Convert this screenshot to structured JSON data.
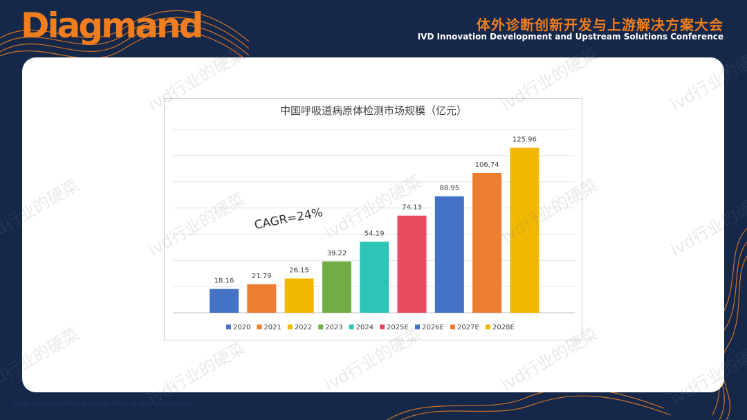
{
  "header": {
    "logo": "Diagmand",
    "conference_cn": "体外诊断创新开发与上游解决方案大会",
    "conference_en": "IVD Innovation Development and Upstream Solutions Conference"
  },
  "footer": {
    "tagline": "High quality information for High quality population"
  },
  "watermark": "ivd行业的硬菜",
  "colors": {
    "background": "#15284a",
    "brand_orange": "#f07d1e"
  },
  "chart_data": {
    "type": "bar",
    "title": "中国呼吸道病原体检测市场规模（亿元）",
    "annotation": "CAGR=24%",
    "categories": [
      "2020",
      "2021",
      "2022",
      "2023",
      "2024",
      "2025E",
      "2026E",
      "2027E",
      "2028E"
    ],
    "values": [
      18.16,
      21.79,
      26.15,
      39.22,
      54.19,
      74.13,
      88.95,
      106.74,
      125.96
    ],
    "data_labels": [
      "18.16",
      "21.79",
      "26.15",
      "39.22",
      "54.19",
      "74.13",
      "88.95",
      "106.74",
      "125.96"
    ],
    "colors": [
      "#4472c4",
      "#ed7d31",
      "#f0b800",
      "#70ad47",
      "#2ec4b6",
      "#e84a5f",
      "#4472c4",
      "#ed7d31",
      "#f0b800"
    ],
    "ylim": [
      0,
      140
    ],
    "gridlines": true,
    "legend_position": "bottom"
  }
}
